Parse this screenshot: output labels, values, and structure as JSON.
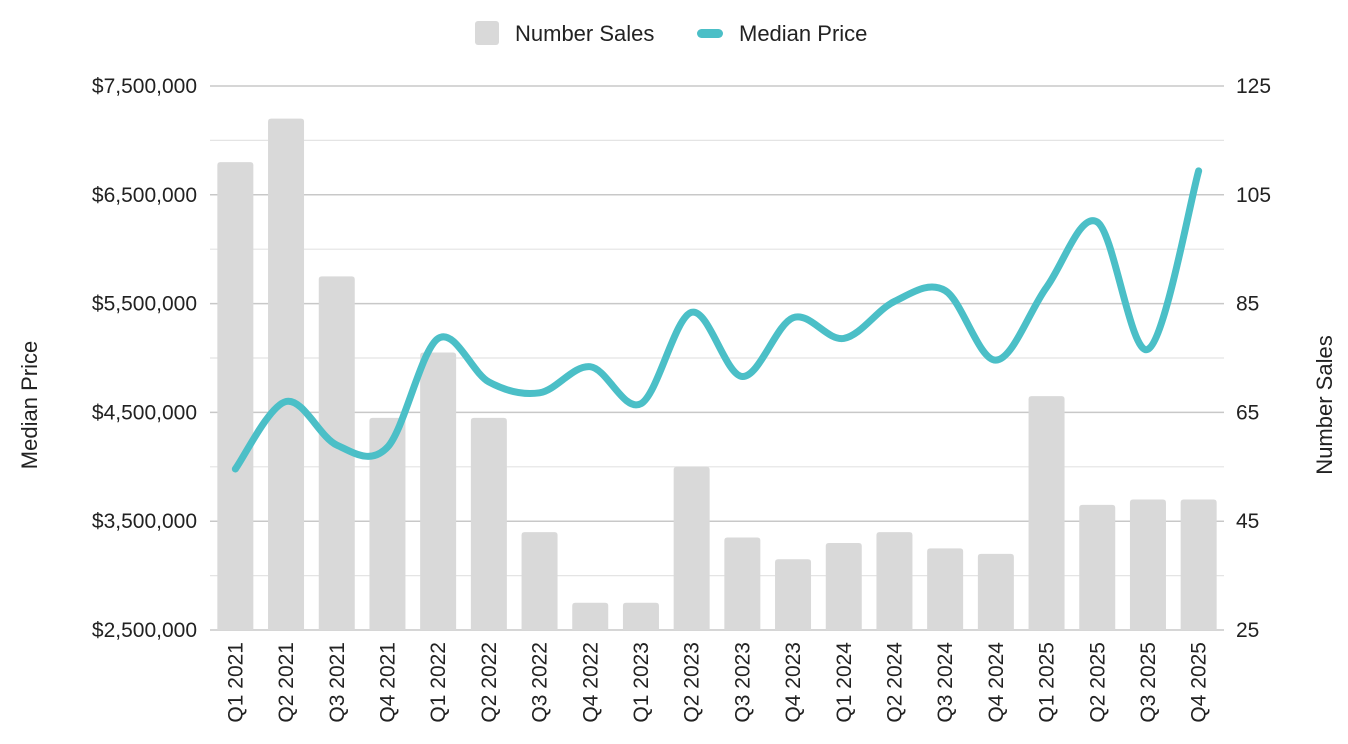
{
  "chart_data": {
    "type": "bar",
    "categories": [
      "Q1 2021",
      "Q2 2021",
      "Q3 2021",
      "Q4 2021",
      "Q1 2022",
      "Q2 2022",
      "Q3 2022",
      "Q4 2022",
      "Q1 2023",
      "Q2 2023",
      "Q3 2023",
      "Q4 2023",
      "Q1 2024",
      "Q2 2024",
      "Q3 2024",
      "Q4 2024",
      "Q1 2025",
      "Q2 2025",
      "Q3 2025",
      "Q4 2025"
    ],
    "series": [
      {
        "name": "Number Sales",
        "type": "bar",
        "axis": "right",
        "color": "#d9d9d9",
        "values": [
          111,
          119,
          90,
          64,
          76,
          64,
          43,
          30,
          30,
          55,
          42,
          38,
          41,
          43,
          40,
          39,
          68,
          48,
          49,
          49
        ]
      },
      {
        "name": "Median Price",
        "type": "line",
        "axis": "left",
        "color": "#4bbfc7",
        "values": [
          3980000,
          4600000,
          4200000,
          4180000,
          5180000,
          4780000,
          4680000,
          4920000,
          4580000,
          5420000,
          4830000,
          5370000,
          5180000,
          5520000,
          5620000,
          4980000,
          5650000,
          6250000,
          5080000,
          6720000
        ]
      }
    ],
    "y_left": {
      "label": "Median Price",
      "range": [
        2500000,
        7500000
      ],
      "ticks": [
        2500000,
        3500000,
        4500000,
        5500000,
        6500000,
        7500000
      ],
      "tick_labels": [
        "$2,500,000",
        "$3,500,000",
        "$4,500,000",
        "$5,500,000",
        "$6,500,000",
        "$7,500,000"
      ]
    },
    "y_right": {
      "label": "Number Sales",
      "range": [
        25,
        125
      ],
      "ticks": [
        25,
        45,
        65,
        85,
        105,
        125
      ],
      "tick_labels": [
        "25",
        "45",
        "65",
        "85",
        "105",
        "125"
      ]
    },
    "grid": true,
    "legend": "top-center"
  }
}
